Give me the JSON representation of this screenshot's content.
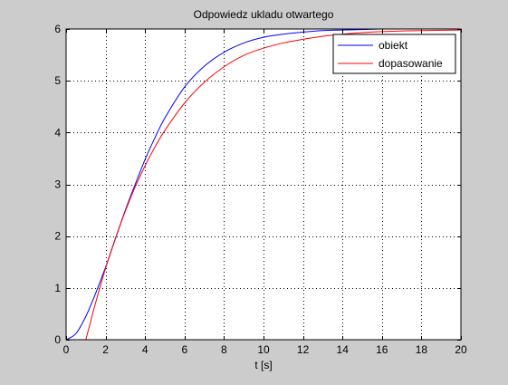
{
  "window": {
    "background": "#cccccc"
  },
  "chart_data": {
    "type": "line",
    "title": "Odpowiedz ukladu otwartego",
    "xlabel": "t [s]",
    "ylabel": "",
    "xlim": [
      0,
      20
    ],
    "ylim": [
      0,
      6
    ],
    "xticks": [
      0,
      2,
      4,
      6,
      8,
      10,
      12,
      14,
      16,
      18,
      20
    ],
    "yticks": [
      0,
      1,
      2,
      3,
      4,
      5,
      6
    ],
    "grid": true,
    "legend_position": "top-right",
    "series": [
      {
        "name": "obiekt",
        "color": "#0000ff",
        "x": [
          0,
          0.5,
          1,
          1.5,
          2,
          2.5,
          3,
          3.5,
          4,
          4.5,
          5,
          6,
          7,
          8,
          9,
          10,
          11,
          12,
          13,
          14,
          15,
          16,
          17,
          18,
          20
        ],
        "y": [
          0,
          0.12,
          0.45,
          0.9,
          1.4,
          1.95,
          2.5,
          3.0,
          3.48,
          3.9,
          4.28,
          4.88,
          5.28,
          5.55,
          5.73,
          5.84,
          5.9,
          5.94,
          5.97,
          5.98,
          5.99,
          6.0,
          6.0,
          6.0,
          6.0
        ]
      },
      {
        "name": "dopasowanie",
        "color": "#ff0000",
        "x": [
          1.0,
          1.5,
          2,
          2.5,
          3,
          3.5,
          4,
          4.5,
          5,
          6,
          7,
          8,
          9,
          10,
          11,
          12,
          13,
          14,
          15,
          16,
          18,
          20
        ],
        "y": [
          0,
          0.72,
          1.38,
          1.96,
          2.48,
          2.95,
          3.36,
          3.72,
          4.04,
          4.57,
          4.97,
          5.27,
          5.49,
          5.63,
          5.73,
          5.8,
          5.86,
          5.9,
          5.93,
          5.95,
          5.97,
          5.98
        ]
      }
    ]
  }
}
